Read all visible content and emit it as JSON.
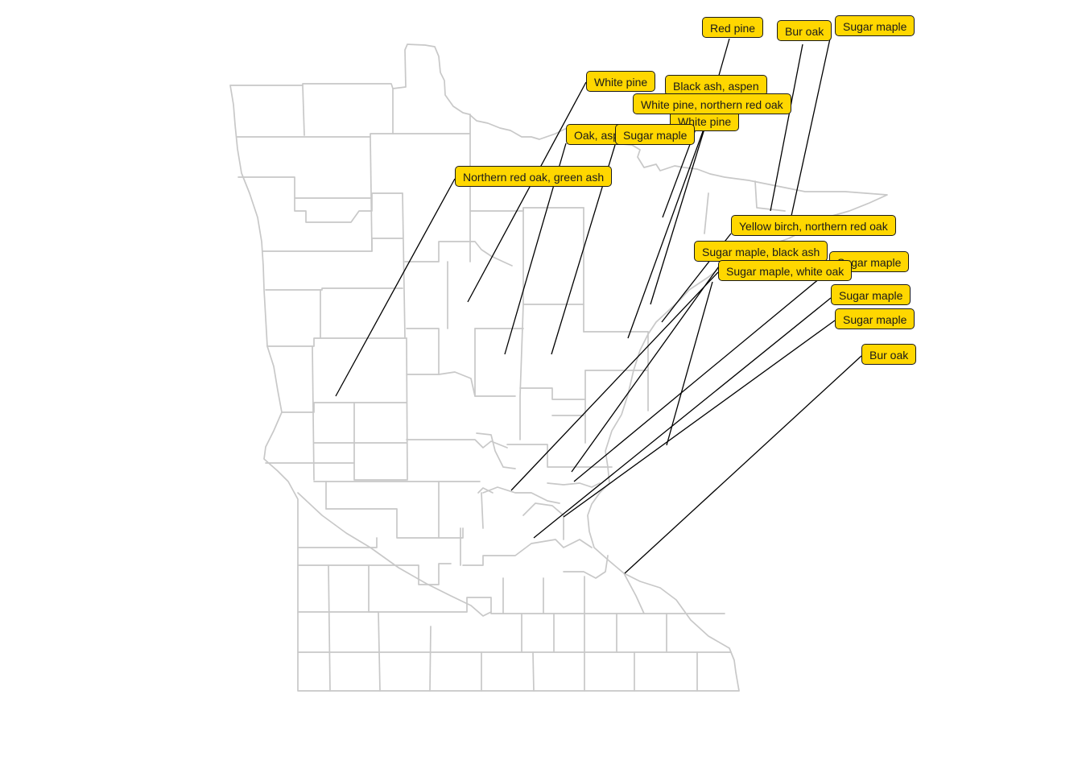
{
  "map": {
    "region": "Minnesota",
    "boundary_color": "#c8c8c8",
    "label_fill": "#FFD700",
    "label_border": "#1a1a1a",
    "leader_color": "#000000"
  },
  "labels": [
    {
      "id": "red-pine",
      "text": "Red pine"
    },
    {
      "id": "bur-oak-north",
      "text": "Bur oak"
    },
    {
      "id": "sugar-maple-top",
      "text": "Sugar maple"
    },
    {
      "id": "white-pine-1",
      "text": "White pine"
    },
    {
      "id": "black-ash-aspen",
      "text": "Black ash, aspen"
    },
    {
      "id": "white-pine-2",
      "text": "White pine"
    },
    {
      "id": "white-pine-northern-red-oak",
      "text": "White pine, northern red oak"
    },
    {
      "id": "oak-aspen",
      "text": "Oak, aspen"
    },
    {
      "id": "sugar-maple-north",
      "text": "Sugar maple"
    },
    {
      "id": "northern-red-oak-green-ash",
      "text": "Northern red oak, green ash"
    },
    {
      "id": "yellow-birch-northern-red-oak",
      "text": "Yellow birch, northern red oak"
    },
    {
      "id": "sugar-maple-hidden",
      "text": "Sugar maple"
    },
    {
      "id": "sugar-maple-black-ash",
      "text": "Sugar maple, black ash"
    },
    {
      "id": "sugar-maple-white-oak",
      "text": "Sugar maple, white oak"
    },
    {
      "id": "sugar-maple-east-1",
      "text": "Sugar maple"
    },
    {
      "id": "sugar-maple-east-2",
      "text": "Sugar maple"
    },
    {
      "id": "bur-oak-south",
      "text": "Bur oak"
    }
  ]
}
